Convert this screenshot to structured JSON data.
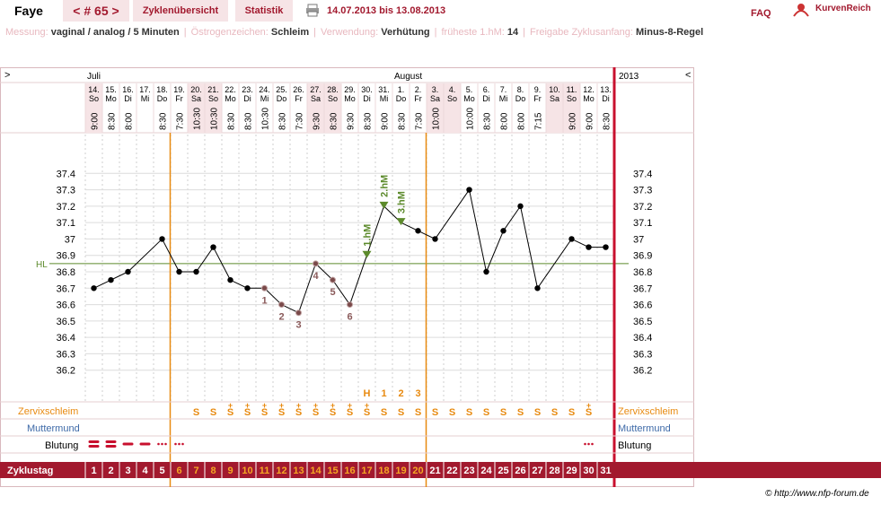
{
  "header": {
    "name": "Faye",
    "cycle_nav": "< # 65 >",
    "tab_overview": "Zyklenübersicht",
    "tab_stats": "Statistik",
    "date_range": "14.07.2013 bis 13.08.2013",
    "faq": "FAQ",
    "brand": "KurvenReich"
  },
  "info": [
    {
      "label": "Messung:",
      "value": "vaginal / analog / 5 Minuten"
    },
    {
      "label": "Östrogenzeichen:",
      "value": "Schleim"
    },
    {
      "label": "Verwendung:",
      "value": "Verhütung"
    },
    {
      "label": "früheste 1.hM:",
      "value": "14"
    },
    {
      "label": "Freigabe Zyklusanfang:",
      "value": "Minus-8-Regel"
    }
  ],
  "nav": {
    "left": ">",
    "right": "<"
  },
  "months": [
    {
      "label": "Juli",
      "day_index": 0
    },
    {
      "label": "August",
      "day_index": 18
    }
  ],
  "year_label": "2013",
  "chart_data": {
    "type": "line",
    "x": [
      "14.",
      "15.",
      "16.",
      "17.",
      "18.",
      "19.",
      "20.",
      "21.",
      "22.",
      "23.",
      "24.",
      "25.",
      "26.",
      "27.",
      "28.",
      "29.",
      "30.",
      "31.",
      "1.",
      "2.",
      "3.",
      "4.",
      "5.",
      "6.",
      "7.",
      "8.",
      "9.",
      "10.",
      "11.",
      "12.",
      "13."
    ],
    "weekdays": [
      "So",
      "Mo",
      "Di",
      "Mi",
      "Do",
      "Fr",
      "Sa",
      "So",
      "Mo",
      "Di",
      "Mi",
      "Do",
      "Fr",
      "Sa",
      "So",
      "Mo",
      "Di",
      "Mi",
      "Do",
      "Fr",
      "Sa",
      "So",
      "Mo",
      "Di",
      "Mi",
      "Do",
      "Fr",
      "Sa",
      "So",
      "Mo",
      "Di"
    ],
    "times": [
      "9:00",
      "8:30",
      "8:00",
      "",
      "8:30",
      "7:30",
      "10:30",
      "10:30",
      "8:30",
      "8:30",
      "10:30",
      "8:30",
      "7:30",
      "9:30",
      "8:30",
      "9:30",
      "8:30",
      "9:00",
      "8:30",
      "7:30",
      "10:00",
      "",
      "10:00",
      "8:30",
      "8:00",
      "8:00",
      "7:15",
      "",
      "9:00",
      "9:00",
      "8:30"
    ],
    "weekend": [
      true,
      false,
      false,
      false,
      false,
      false,
      true,
      true,
      false,
      false,
      false,
      false,
      false,
      true,
      true,
      false,
      false,
      false,
      false,
      false,
      true,
      true,
      false,
      false,
      false,
      false,
      false,
      true,
      true,
      false,
      false
    ],
    "temperatures": [
      36.7,
      36.75,
      36.8,
      null,
      37.0,
      36.8,
      36.8,
      36.95,
      36.75,
      36.7,
      36.7,
      36.6,
      36.55,
      36.85,
      36.75,
      36.6,
      36.9,
      37.2,
      37.1,
      37.05,
      37.0,
      null,
      37.3,
      36.8,
      37.05,
      37.2,
      36.7,
      null,
      37.0,
      36.95,
      36.95
    ],
    "marker_type": [
      "dot",
      "dot",
      "dot",
      null,
      "dot",
      "dot",
      "dot",
      "dot",
      "dot",
      "dot",
      "ring",
      "ring",
      "ring",
      "ring",
      "ring",
      "ring",
      "tri",
      "tri",
      "tri",
      "dot",
      "dot",
      null,
      "dot",
      "dot",
      "dot",
      "dot",
      "dot",
      null,
      "dot",
      "dot",
      "dot"
    ],
    "low_labels": [
      {
        "day": 10,
        "text": "1"
      },
      {
        "day": 11,
        "text": "2"
      },
      {
        "day": 12,
        "text": "3"
      },
      {
        "day": 13,
        "text": "4"
      },
      {
        "day": 14,
        "text": "5"
      },
      {
        "day": 15,
        "text": "6"
      }
    ],
    "high_labels": [
      {
        "day": 16,
        "text": "1.hM"
      },
      {
        "day": 17,
        "text": "2.hM"
      },
      {
        "day": 18,
        "text": "3.hM"
      }
    ],
    "y_ticks": [
      "37.4",
      "37.3",
      "37.2",
      "37.1",
      "37",
      "36.9",
      "36.8",
      "36.7",
      "36.6",
      "36.5",
      "36.4",
      "36.3",
      "36.2"
    ],
    "ylim": [
      36.1,
      37.5
    ],
    "hili_label": "HL",
    "hili_value": 36.85,
    "orange_lines_day": [
      4.5,
      19.5
    ],
    "peak_labels": [
      {
        "day": 16,
        "text": "H"
      },
      {
        "day": 17,
        "text": "1"
      },
      {
        "day": 18,
        "text": "2"
      },
      {
        "day": 19,
        "text": "3"
      }
    ],
    "grid": true
  },
  "rows": {
    "cervix_label": "Zervixschleim",
    "cervix": [
      "",
      "",
      "",
      "",
      "",
      "",
      "S",
      "S",
      "S+",
      "S+",
      "S+",
      "S+",
      "S+",
      "S+",
      "S+",
      "S+",
      "S+",
      "S",
      "S",
      "S",
      "S",
      "S",
      "S",
      "S",
      "S",
      "S",
      "S",
      "S",
      "S",
      "S+",
      ""
    ],
    "mumu_label": "Muttermund",
    "bleed_label": "Blutung",
    "bleeding": [
      "strong",
      "strong",
      "medium",
      "medium",
      "spot",
      "spot",
      "",
      "",
      "",
      "",
      "",
      "",
      "",
      "",
      "",
      "",
      "",
      "",
      "",
      "",
      "",
      "",
      "",
      "",
      "",
      "",
      "",
      "",
      "",
      "spot",
      ""
    ],
    "cycle_label": "Zyklustag",
    "cycle_days": [
      "1",
      "2",
      "3",
      "4",
      "5",
      "6",
      "7",
      "8",
      "9",
      "10",
      "11",
      "12",
      "13",
      "14",
      "15",
      "16",
      "17",
      "18",
      "19",
      "20",
      "21",
      "22",
      "23",
      "24",
      "25",
      "26",
      "27",
      "28",
      "29",
      "30",
      "31"
    ]
  },
  "footer": {
    "copyright": "© http://www.nfp-forum.de"
  },
  "colors": {
    "accent": "#a2192e",
    "orange": "#e88a10",
    "green": "#5c8a2b",
    "blue": "#3e6aa8",
    "ring": "#8a5a5a"
  }
}
